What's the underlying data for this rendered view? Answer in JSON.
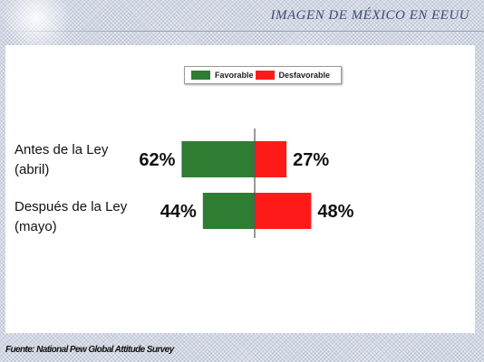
{
  "header": {
    "title": "IMAGEN DE MÉXICO EN EEUU"
  },
  "footer": {
    "label": "Fuente:",
    "source": "National Pew Global Attitude Survey"
  },
  "chart_data": {
    "type": "bar",
    "orientation": "horizontal-diverging",
    "title": "",
    "categories": [
      [
        "Antes de la Ley",
        "(abril)"
      ],
      [
        "Después de la Ley",
        "(mayo)"
      ]
    ],
    "series": [
      {
        "name": "Favorable",
        "values": [
          62,
          44
        ],
        "labels": [
          "62%",
          "44%"
        ],
        "color": "#2e7d32",
        "direction": "left"
      },
      {
        "name": "Desfavorable",
        "values": [
          27,
          48
        ],
        "labels": [
          "27%",
          "48%"
        ],
        "color": "#ff1a1a",
        "direction": "right"
      }
    ],
    "unit": "%",
    "legend": "top-center",
    "grid": false
  }
}
